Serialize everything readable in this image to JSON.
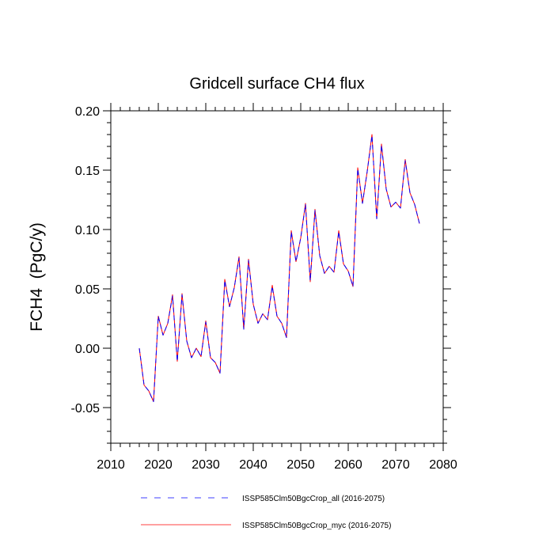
{
  "chart_data": {
    "type": "line",
    "title": "Gridcell surface CH4 flux",
    "xlabel": "",
    "ylabel": "FCH4  (PgC/y)",
    "xlim": [
      2010,
      2080
    ],
    "ylim": [
      -0.08,
      0.2
    ],
    "x_ticks": [
      2010,
      2020,
      2030,
      2040,
      2050,
      2060,
      2070,
      2080
    ],
    "x_tick_labels": [
      "2010",
      "2020",
      "2030",
      "2040",
      "2050",
      "2060",
      "2070",
      "2080"
    ],
    "y_ticks": [
      -0.05,
      0.0,
      0.05,
      0.1,
      0.15,
      0.2
    ],
    "y_tick_labels": [
      "-0.05",
      "0.00",
      "0.05",
      "0.10",
      "0.15",
      "0.20"
    ],
    "grid": false,
    "legend_position": "bottom",
    "x": [
      2016,
      2017,
      2018,
      2019,
      2020,
      2021,
      2022,
      2023,
      2024,
      2025,
      2026,
      2027,
      2028,
      2029,
      2030,
      2031,
      2032,
      2033,
      2034,
      2035,
      2036,
      2037,
      2038,
      2039,
      2040,
      2041,
      2042,
      2043,
      2044,
      2045,
      2046,
      2047,
      2048,
      2049,
      2050,
      2051,
      2052,
      2053,
      2054,
      2055,
      2056,
      2057,
      2058,
      2059,
      2060,
      2061,
      2062,
      2063,
      2064,
      2065,
      2066,
      2067,
      2068,
      2069,
      2070,
      2071,
      2072,
      2073,
      2074,
      2075
    ],
    "series": [
      {
        "name": "ISSP585Clm50BgcCrop_all (2016-2075)",
        "color": "#0000ff",
        "style": "dashed",
        "values": [
          0.0,
          -0.031,
          -0.036,
          -0.045,
          0.027,
          0.011,
          0.021,
          0.044,
          -0.011,
          0.045,
          0.006,
          -0.008,
          0.0,
          -0.007,
          0.022,
          -0.008,
          -0.012,
          -0.021,
          0.057,
          0.035,
          0.051,
          0.076,
          0.016,
          0.074,
          0.037,
          0.021,
          0.029,
          0.024,
          0.052,
          0.027,
          0.021,
          0.009,
          0.098,
          0.073,
          0.093,
          0.121,
          0.057,
          0.116,
          0.078,
          0.063,
          0.069,
          0.064,
          0.098,
          0.071,
          0.065,
          0.052,
          0.151,
          0.122,
          0.149,
          0.179,
          0.109,
          0.171,
          0.134,
          0.119,
          0.123,
          0.118,
          0.158,
          0.131,
          0.121,
          0.105
        ]
      },
      {
        "name": "ISSP585Clm50BgcCrop_myc (2016-2075)",
        "color": "#ff0000",
        "style": "solid",
        "values": [
          0.0,
          -0.031,
          -0.036,
          -0.045,
          0.027,
          0.011,
          0.021,
          0.045,
          -0.011,
          0.046,
          0.006,
          -0.008,
          0.0,
          -0.007,
          0.023,
          -0.008,
          -0.012,
          -0.021,
          0.058,
          0.035,
          0.051,
          0.077,
          0.016,
          0.075,
          0.037,
          0.021,
          0.029,
          0.024,
          0.053,
          0.027,
          0.021,
          0.009,
          0.099,
          0.073,
          0.093,
          0.122,
          0.056,
          0.117,
          0.078,
          0.063,
          0.069,
          0.064,
          0.099,
          0.071,
          0.065,
          0.052,
          0.152,
          0.122,
          0.149,
          0.18,
          0.109,
          0.172,
          0.134,
          0.119,
          0.123,
          0.118,
          0.159,
          0.131,
          0.121,
          0.105
        ]
      }
    ]
  }
}
